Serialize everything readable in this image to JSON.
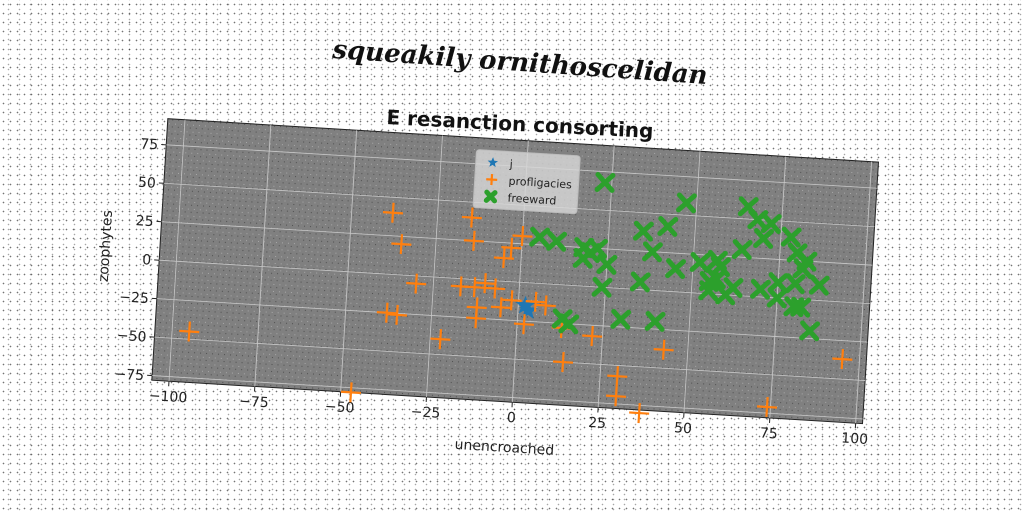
{
  "header": {
    "suptitle": "squeakily ornithoscelidan"
  },
  "chart_data": {
    "type": "scatter",
    "title": "E resanction consorting",
    "xlabel": "unencroached",
    "ylabel": "zoophytes",
    "xlim": [
      -105,
      102
    ],
    "ylim": [
      -78,
      92
    ],
    "xticks": [
      -100,
      -75,
      -50,
      -25,
      0,
      25,
      50,
      75,
      100
    ],
    "yticks": [
      -75,
      -50,
      -25,
      0,
      25,
      50,
      75
    ],
    "grid": true,
    "legend_position": "top-center",
    "background": "#808080",
    "series": [
      {
        "name": "j",
        "marker": "star",
        "color": "#1f77b4",
        "points": [
          [
            2,
            -15
          ],
          [
            3,
            -18
          ]
        ]
      },
      {
        "name": "profligacies",
        "marker": "plus",
        "color": "#ff7f0e",
        "points": [
          [
            -95,
            -45
          ],
          [
            -47,
            -78
          ],
          [
            -38,
            40
          ],
          [
            -35,
            20
          ],
          [
            -38,
            -25
          ],
          [
            -35,
            -26
          ],
          [
            -30,
            -5
          ],
          [
            -22,
            -40
          ],
          [
            -17,
            -5
          ],
          [
            -15,
            40
          ],
          [
            -14,
            25
          ],
          [
            -13,
            -5
          ],
          [
            -12,
            -18
          ],
          [
            -12,
            -25
          ],
          [
            -10,
            -2
          ],
          [
            -7,
            -5
          ],
          [
            -5,
            15
          ],
          [
            -5,
            -17
          ],
          [
            -3,
            22
          ],
          [
            -2,
            -12
          ],
          [
            0,
            30
          ],
          [
            2,
            -27
          ],
          [
            5,
            -12
          ],
          [
            8,
            -14
          ],
          [
            13,
            -28
          ],
          [
            14,
            -50
          ],
          [
            22,
            -32
          ],
          [
            30,
            -57
          ],
          [
            30,
            -70
          ],
          [
            37,
            -80
          ],
          [
            43,
            -38
          ],
          [
            74,
            -71
          ],
          [
            95,
            -37
          ]
        ]
      },
      {
        "name": "freeward",
        "marker": "x",
        "color": "#2ca02c",
        "points": [
          [
            5,
            30
          ],
          [
            10,
            28
          ],
          [
            13,
            -22
          ],
          [
            15,
            -25
          ],
          [
            18,
            25
          ],
          [
            18,
            18
          ],
          [
            20,
            22
          ],
          [
            22,
            25
          ],
          [
            23,
            68
          ],
          [
            24,
            0
          ],
          [
            25,
            15
          ],
          [
            30,
            -20
          ],
          [
            35,
            5
          ],
          [
            35,
            38
          ],
          [
            38,
            25
          ],
          [
            40,
            -20
          ],
          [
            42,
            42
          ],
          [
            45,
            15
          ],
          [
            47,
            58
          ],
          [
            52,
            20
          ],
          [
            55,
            2
          ],
          [
            55,
            8
          ],
          [
            57,
            10
          ],
          [
            57,
            22
          ],
          [
            58,
            18
          ],
          [
            60,
            0
          ],
          [
            62,
            5
          ],
          [
            64,
            30
          ],
          [
            65,
            58
          ],
          [
            68,
            50
          ],
          [
            70,
            38
          ],
          [
            70,
            5
          ],
          [
            72,
            48
          ],
          [
            75,
            10
          ],
          [
            75,
            0
          ],
          [
            78,
            40
          ],
          [
            80,
            30
          ],
          [
            80,
            10
          ],
          [
            80,
            -5
          ],
          [
            82,
            -5
          ],
          [
            82,
            20
          ],
          [
            83,
            25
          ],
          [
            85,
            -20
          ],
          [
            87,
            10
          ]
        ]
      }
    ]
  }
}
